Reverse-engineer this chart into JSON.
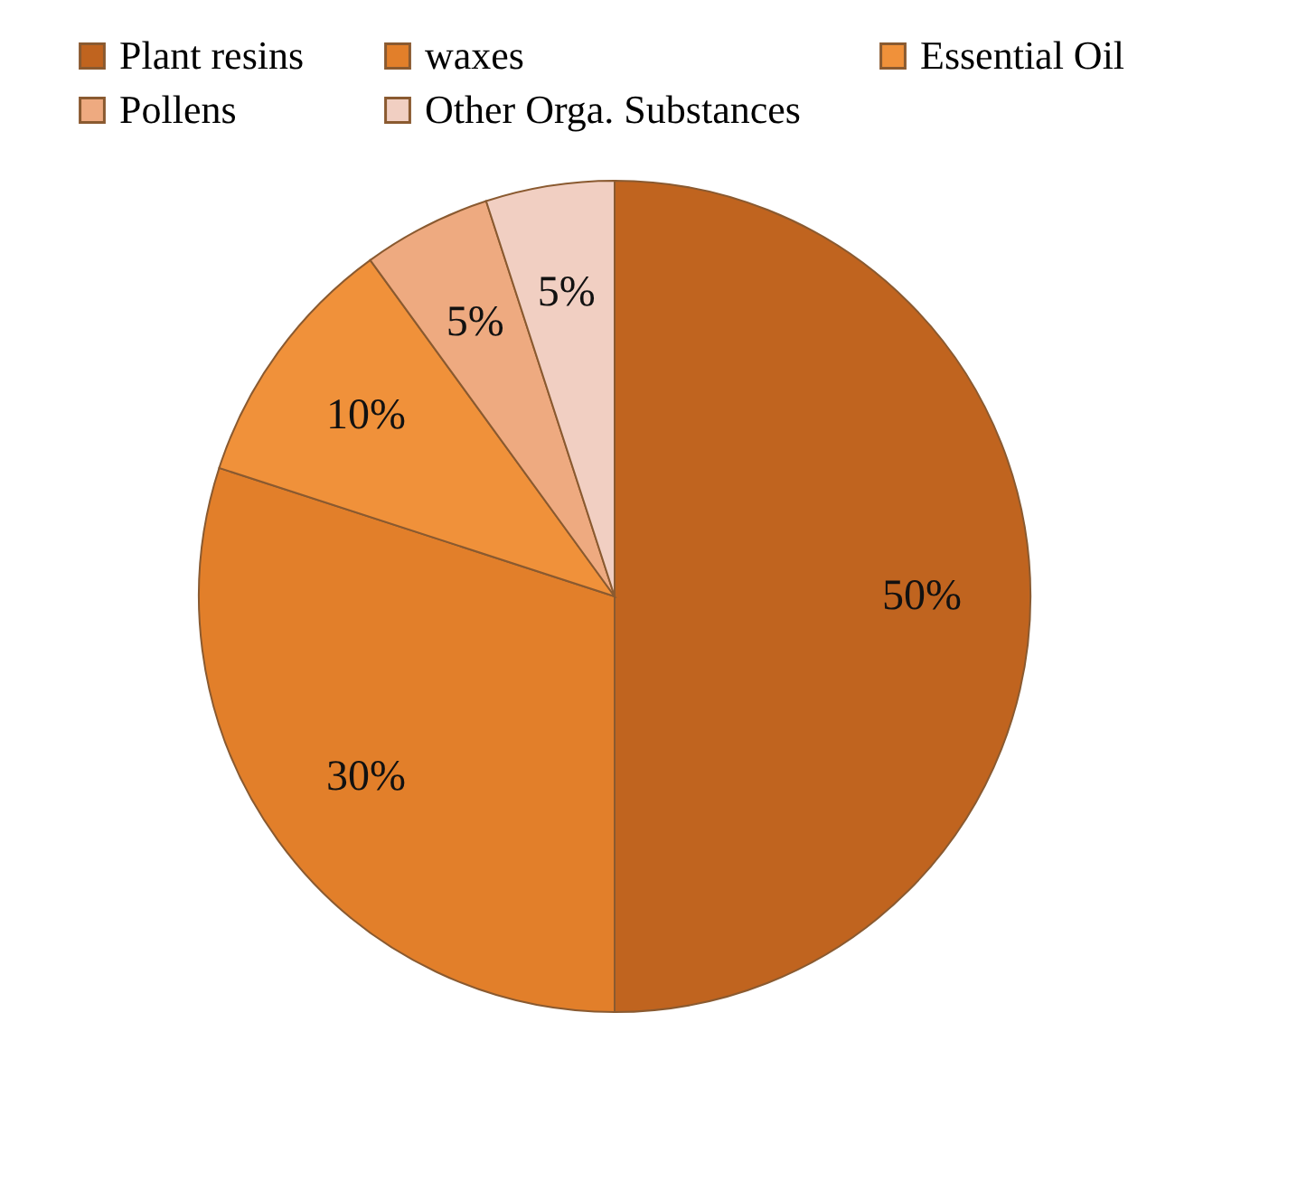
{
  "chart_data": {
    "type": "pie",
    "categories": [
      "Plant resins",
      "waxes",
      "Essential Oil",
      "Pollens",
      "Other Orga. Substances"
    ],
    "values": [
      50,
      30,
      10,
      5,
      5
    ],
    "value_labels": [
      "50%",
      "30%",
      "10%",
      "5%",
      "5%"
    ],
    "colors": [
      "#c0641f",
      "#e27f2a",
      "#f0913a",
      "#eeaa80",
      "#f1cfc2"
    ],
    "legend": "top"
  }
}
